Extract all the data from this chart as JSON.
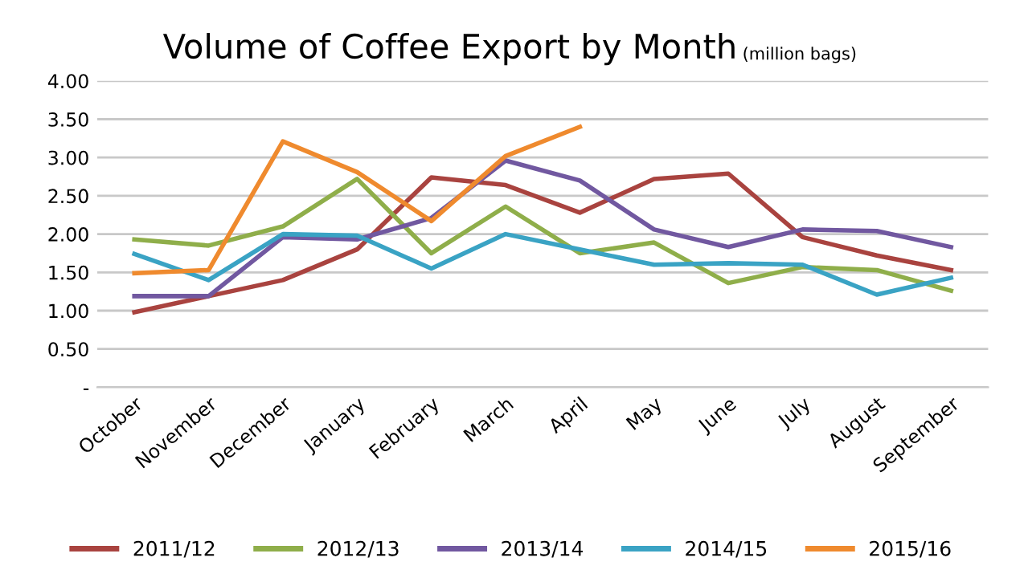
{
  "chart_data": {
    "type": "line",
    "title": "Volume of Coffee Export by Month",
    "subtitle": "(million bags)",
    "categories": [
      "October",
      "November",
      "December",
      "January",
      "February",
      "March",
      "April",
      "May",
      "June",
      "July",
      "August",
      "September"
    ],
    "series": [
      {
        "name": "2011/12",
        "color": "#a9433f",
        "values": [
          0.98,
          1.19,
          1.4,
          1.8,
          2.74,
          2.64,
          2.28,
          2.72,
          2.79,
          1.96,
          1.72,
          1.53
        ]
      },
      {
        "name": "2012/13",
        "color": "#8fae4a",
        "values": [
          1.93,
          1.85,
          2.1,
          2.72,
          1.75,
          2.36,
          1.75,
          1.89,
          1.36,
          1.57,
          1.53,
          1.26
        ]
      },
      {
        "name": "2013/14",
        "color": "#7158a0",
        "values": [
          1.19,
          1.19,
          1.96,
          1.93,
          2.21,
          2.96,
          2.7,
          2.06,
          1.83,
          2.06,
          2.04,
          1.83
        ]
      },
      {
        "name": "2014/15",
        "color": "#3aa3c4",
        "values": [
          1.74,
          1.4,
          2.0,
          1.98,
          1.55,
          2.0,
          1.8,
          1.6,
          1.62,
          1.6,
          1.21,
          1.43
        ]
      },
      {
        "name": "2015/16",
        "color": "#ef8a2e",
        "values": [
          1.49,
          1.53,
          3.21,
          2.81,
          2.17,
          3.02,
          3.4,
          null,
          null,
          null,
          null,
          null
        ]
      }
    ],
    "ylim": [
      0,
      4
    ],
    "yticks": [
      {
        "value": 0,
        "label": "-"
      },
      {
        "value": 0.5,
        "label": "0.50"
      },
      {
        "value": 1,
        "label": "1.00"
      },
      {
        "value": 1.5,
        "label": "1.50"
      },
      {
        "value": 2,
        "label": "2.00"
      },
      {
        "value": 2.5,
        "label": "2.50"
      },
      {
        "value": 3,
        "label": "3.00"
      },
      {
        "value": 3.5,
        "label": "3.50"
      },
      {
        "value": 4,
        "label": "4.00"
      }
    ],
    "grid": "y",
    "legend": "bottom",
    "marker": "none",
    "line_style": "solid"
  }
}
